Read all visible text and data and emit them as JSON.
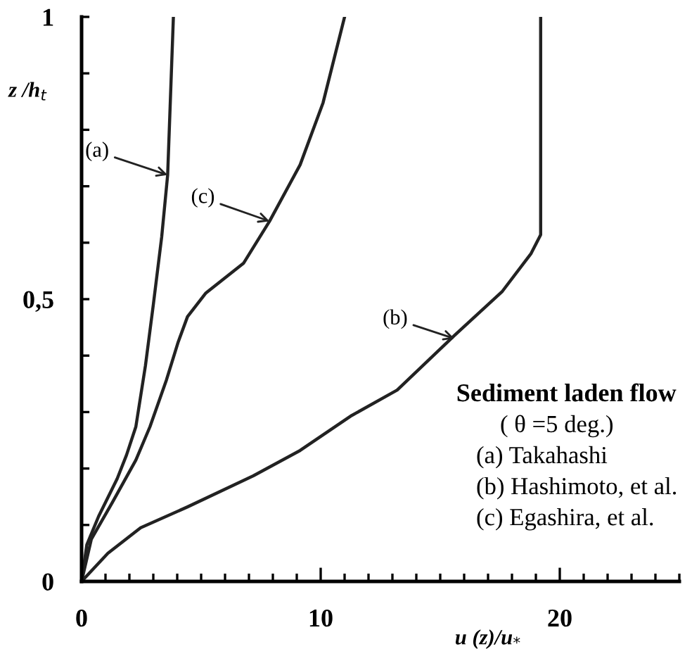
{
  "chart_data": {
    "type": "line",
    "xlabel": "u (z)/u$_{*}$",
    "ylabel": "z /h$_{t}$",
    "xlim": [
      0,
      25
    ],
    "ylim": [
      0,
      1
    ],
    "xticks": [
      0,
      {
        "value": 1,
        "label": null
      },
      {
        "value": 2,
        "label": null
      },
      {
        "value": 3,
        "label": null
      },
      {
        "value": 4,
        "label": null
      },
      {
        "value": 5,
        "label": null
      },
      {
        "value": 6,
        "label": null
      },
      {
        "value": 7,
        "label": null
      },
      {
        "value": 8,
        "label": null
      },
      {
        "value": 9,
        "label": null
      },
      10,
      {
        "value": 11,
        "label": null
      },
      {
        "value": 12,
        "label": null
      },
      {
        "value": 13,
        "label": null
      },
      {
        "value": 14,
        "label": null
      },
      {
        "value": 15,
        "label": null
      },
      {
        "value": 16,
        "label": null
      },
      {
        "value": 17,
        "label": null
      },
      {
        "value": 18,
        "label": null
      },
      {
        "value": 19,
        "label": null
      },
      20,
      {
        "value": 21,
        "label": null
      },
      {
        "value": 22,
        "label": null
      },
      {
        "value": 23,
        "label": null
      },
      {
        "value": 24,
        "label": null
      },
      {
        "value": 25,
        "label": null
      }
    ],
    "yticks": [
      0,
      {
        "value": 0.1,
        "label": null
      },
      {
        "value": 0.2,
        "label": null
      },
      {
        "value": 0.3,
        "label": null
      },
      {
        "value": 0.4,
        "label": null
      },
      {
        "value": 0.5,
        "label": "0,5"
      },
      {
        "value": 0.6,
        "label": null
      },
      {
        "value": 0.7,
        "label": null
      },
      {
        "value": 0.8,
        "label": null
      },
      {
        "value": 0.9,
        "label": null
      },
      1
    ],
    "grid": false,
    "marker": "none",
    "line_style": "solid",
    "series": [
      {
        "color": "#222222",
        "x": [
          0,
          0.22,
          0.71,
          1.49,
          1.88,
          2.27,
          2.67,
          3.0,
          3.35,
          3.6,
          3.84
        ],
        "values": [
          0,
          0.065,
          0.115,
          0.182,
          0.224,
          0.274,
          0.382,
          0.49,
          0.61,
          0.72,
          1.0
        ]
      },
      {
        "color": "#222222",
        "x": [
          0,
          1.1,
          2.47,
          4.43,
          7.18,
          9.14,
          11.3,
          13.2,
          15.6,
          17.6,
          18.8,
          19.2,
          19.2
        ],
        "values": [
          0,
          0.05,
          0.095,
          0.132,
          0.187,
          0.232,
          0.294,
          0.339,
          0.436,
          0.514,
          0.581,
          0.614,
          1.0
        ]
      },
      {
        "color": "#222222",
        "x": [
          0,
          0.41,
          1.29,
          2.27,
          2.86,
          3.55,
          4.04,
          4.43,
          5.2,
          6.78,
          7.86,
          9.14,
          10.1,
          11.0
        ],
        "values": [
          0,
          0.075,
          0.14,
          0.215,
          0.274,
          0.357,
          0.424,
          0.469,
          0.511,
          0.564,
          0.638,
          0.738,
          0.848,
          1.0
        ]
      }
    ],
    "annotations": [
      {
        "text": "(a)",
        "x": 3.6,
        "y": 0.72
      },
      {
        "text": "(b)",
        "x": 15.6,
        "y": 0.43
      },
      {
        "text": "(c)",
        "x": 7.86,
        "y": 0.638
      },
      "Sediment laden flow",
      "( θ =5 deg.)",
      "(a) Takahashi",
      "(b) Hashimoto, et al.",
      "(c) Egashira, et al."
    ]
  }
}
